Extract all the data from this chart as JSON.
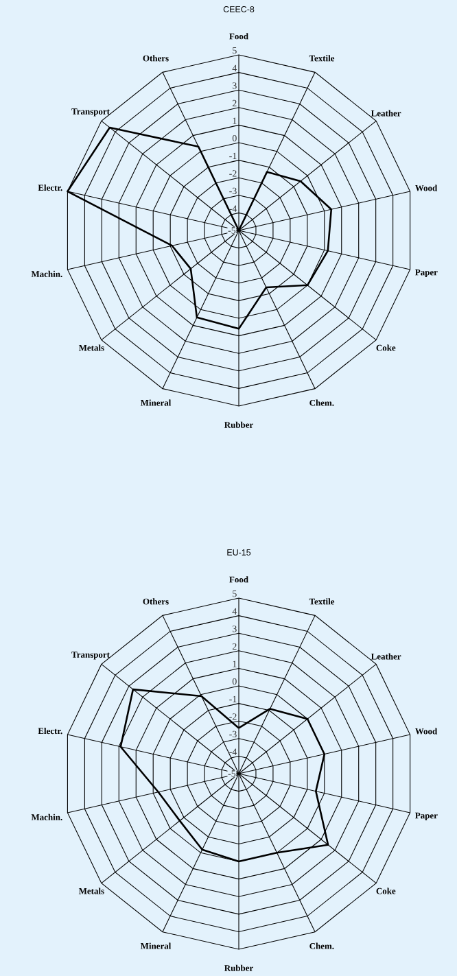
{
  "chart_data": [
    {
      "type": "radar",
      "title": "CEEC-8",
      "categories": [
        "Food",
        "Textile",
        "Leather",
        "Wood",
        "Paper",
        "Coke",
        "Chem.",
        "Rubber",
        "Mineral",
        "Metals",
        "Machin.",
        "Electr.",
        "Transport",
        "Others"
      ],
      "series": [
        {
          "color": "#000000",
          "values": [
            -5,
            -1.3,
            -0.5,
            0.4,
            0.2,
            0.0,
            -1.4,
            0.6,
            0.5,
            -1.5,
            -1.1,
            5,
            4.4,
            0.3
          ]
        }
      ],
      "ylim": [
        -5,
        5
      ],
      "yticks": [
        -5,
        -4,
        -3,
        -2,
        -1,
        0,
        1,
        2,
        3,
        4,
        5
      ],
      "grid": true
    },
    {
      "type": "radar",
      "title": "EU-15",
      "categories": [
        "Food",
        "Textile",
        "Leather",
        "Wood",
        "Paper",
        "Coke",
        "Chem.",
        "Rubber",
        "Mineral",
        "Metals",
        "Machin.",
        "Electr.",
        "Transport",
        "Others"
      ],
      "series": [
        {
          "color": "#000000",
          "values": [
            -2.4,
            -0.9,
            0.0,
            0.0,
            -0.5,
            1.5,
            0.0,
            0.0,
            -0.2,
            -0.7,
            -0.3,
            1.9,
            2.7,
            -0.1
          ]
        }
      ],
      "ylim": [
        -5,
        5
      ],
      "yticks": [
        -5,
        -4,
        -3,
        -2,
        -1,
        0,
        1,
        2,
        3,
        4,
        5
      ],
      "grid": true
    }
  ]
}
